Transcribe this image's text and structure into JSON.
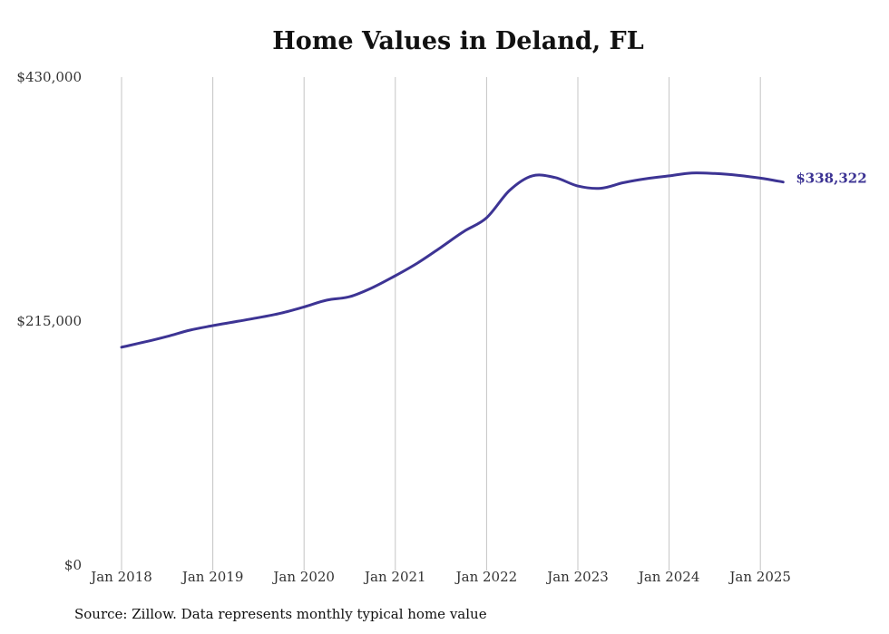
{
  "chart_data": {
    "type": "line",
    "title": "Home Values in Deland, FL",
    "source": "Source: Zillow. Data represents monthly typical home value",
    "ylim": [
      0,
      430000
    ],
    "y_ticks": [
      {
        "value": 0,
        "label": "$0"
      },
      {
        "value": 215000,
        "label": "$215,000"
      },
      {
        "value": 430000,
        "label": "$430,000"
      }
    ],
    "x_ticks": [
      {
        "value": 2018,
        "label": "Jan 2018"
      },
      {
        "value": 2019,
        "label": "Jan 2019"
      },
      {
        "value": 2020,
        "label": "Jan 2020"
      },
      {
        "value": 2021,
        "label": "Jan 2021"
      },
      {
        "value": 2022,
        "label": "Jan 2022"
      },
      {
        "value": 2023,
        "label": "Jan 2023"
      },
      {
        "value": 2024,
        "label": "Jan 2024"
      },
      {
        "value": 2025,
        "label": "Jan 2025"
      }
    ],
    "grid": "vertical",
    "line_color": "#3d3494",
    "end_label": "$338,322",
    "series": [
      {
        "x": [
          "2018-01",
          "2018-04",
          "2018-07",
          "2018-10",
          "2019-01",
          "2019-04",
          "2019-07",
          "2019-10",
          "2020-01",
          "2020-04",
          "2020-07",
          "2020-10",
          "2021-01",
          "2021-04",
          "2021-07",
          "2021-10",
          "2022-01",
          "2022-04",
          "2022-07",
          "2022-10",
          "2023-01",
          "2023-04",
          "2023-07",
          "2023-10",
          "2024-01",
          "2024-04",
          "2024-07",
          "2024-10",
          "2025-01",
          "2025-04"
        ],
        "values": [
          192000,
          196500,
          201500,
          207000,
          211000,
          214500,
          218000,
          222000,
          227500,
          233500,
          236500,
          244500,
          255000,
          266500,
          280000,
          294000,
          306000,
          330000,
          343000,
          341500,
          334000,
          332000,
          337000,
          340500,
          343000,
          345500,
          345000,
          343500,
          341000,
          337500
        ]
      }
    ]
  }
}
